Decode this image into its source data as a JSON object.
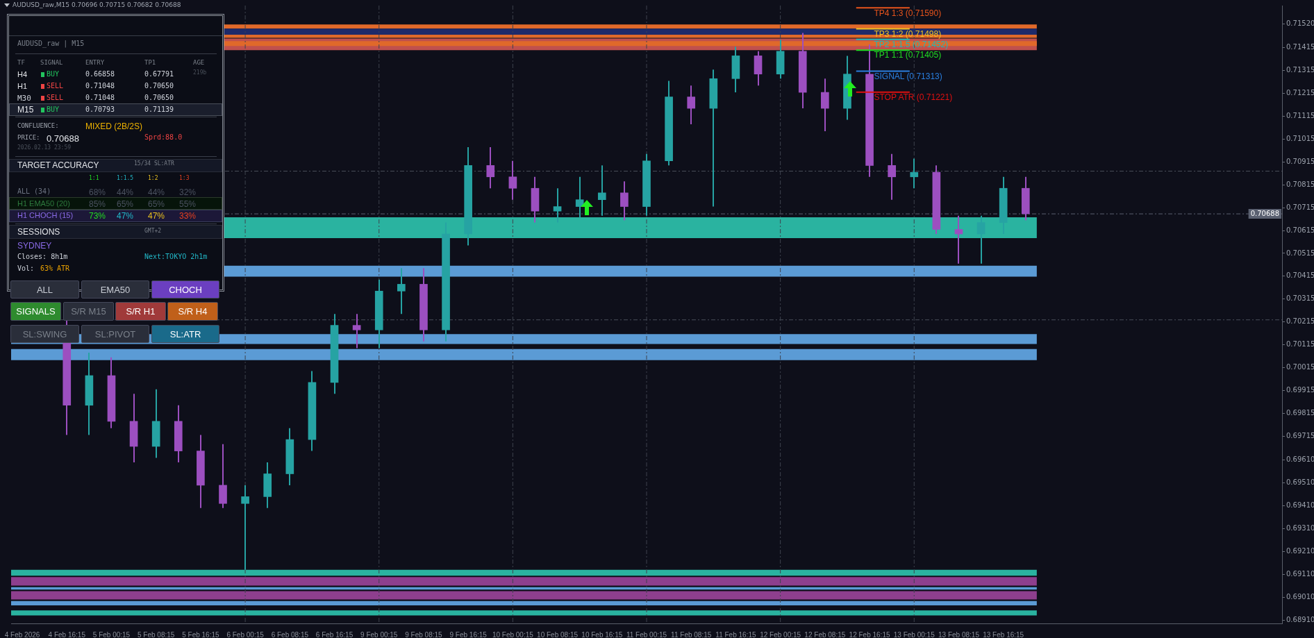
{
  "chart_data": {
    "type": "candlestick",
    "title": "AUDUSD_raw,M15  0.70696 0.70715 0.70682 0.70688",
    "categories": [
      "4 Feb 2026",
      null,
      "4 Feb 16:15",
      null,
      "5 Feb 00:15",
      null,
      "5 Feb 08:15",
      null,
      "5 Feb 16:15",
      null,
      "6 Feb 00:15",
      null,
      "6 Feb 08:15",
      null,
      "6 Feb 16:15",
      null,
      "9 Feb 00:15",
      null,
      "9 Feb 08:15",
      null,
      "9 Feb 16:15",
      null,
      "10 Feb 00:15",
      null,
      "10 Feb 08:15",
      null,
      "10 Feb 16:15",
      null,
      "11 Feb 00:15",
      null,
      "11 Feb 08:15",
      null,
      "11 Feb 16:15",
      null,
      "12 Feb 00:15",
      null,
      "12 Feb 08:15",
      null,
      "12 Feb 16:15",
      null,
      "13 Feb 00:15",
      null,
      "13 Feb 08:15",
      null,
      "13 Feb 16:15",
      null,
      null,
      null,
      null,
      null,
      null,
      null,
      null,
      null,
      null,
      null,
      null
    ],
    "ohlc": [
      null,
      null,
      [
        0.702,
        0.7022,
        0.6972,
        0.6985
      ],
      [
        0.6985,
        0.7008,
        0.6972,
        0.6998
      ],
      [
        0.6998,
        0.7006,
        0.6975,
        0.6978
      ],
      [
        0.6978,
        0.699,
        0.696,
        0.6967
      ],
      [
        0.6967,
        0.6992,
        0.6962,
        0.6978
      ],
      [
        0.6978,
        0.6985,
        0.696,
        0.6965
      ],
      [
        0.6965,
        0.6972,
        0.694,
        0.695
      ],
      [
        0.695,
        0.6968,
        0.694,
        0.6942
      ],
      [
        0.6942,
        0.695,
        0.6913,
        0.6945
      ],
      [
        0.6945,
        0.696,
        0.694,
        0.6955
      ],
      [
        0.6955,
        0.6975,
        0.695,
        0.697
      ],
      [
        0.697,
        0.7,
        0.6965,
        0.6995
      ],
      [
        0.6995,
        0.7025,
        0.699,
        0.702
      ],
      [
        0.702,
        0.7025,
        0.701,
        0.7018
      ],
      [
        0.7018,
        0.704,
        0.701,
        0.7035
      ],
      [
        0.7035,
        0.7045,
        0.7025,
        0.7038
      ],
      [
        0.7038,
        0.7045,
        0.7013,
        0.7018
      ],
      [
        0.7018,
        0.7065,
        0.7013,
        0.706
      ],
      [
        0.706,
        0.7098,
        0.7055,
        0.709
      ],
      [
        0.709,
        0.7098,
        0.708,
        0.7085
      ],
      [
        0.7085,
        0.7092,
        0.7075,
        0.708
      ],
      [
        0.708,
        0.7085,
        0.7065,
        0.707
      ],
      [
        0.707,
        0.708,
        0.7065,
        0.7072
      ],
      [
        0.7072,
        0.7085,
        0.7067,
        0.7075
      ],
      [
        0.7075,
        0.709,
        0.7068,
        0.7078
      ],
      [
        0.7078,
        0.7083,
        0.7066,
        0.7072
      ],
      [
        0.7072,
        0.7095,
        0.7068,
        0.7092
      ],
      [
        0.7092,
        0.7127,
        0.709,
        0.712
      ],
      [
        0.712,
        0.7125,
        0.7108,
        0.7115
      ],
      [
        0.7115,
        0.7132,
        0.7072,
        0.7128
      ],
      [
        0.7128,
        0.7142,
        0.7122,
        0.7138
      ],
      [
        0.7138,
        0.714,
        0.7125,
        0.713
      ],
      [
        0.713,
        0.7145,
        0.7128,
        0.714
      ],
      [
        0.714,
        0.7148,
        0.7115,
        0.7122
      ],
      [
        0.7122,
        0.7128,
        0.7105,
        0.7115
      ],
      [
        0.7115,
        0.7138,
        0.711,
        0.713
      ],
      [
        0.713,
        0.7143,
        0.7085,
        0.709
      ],
      [
        0.709,
        0.7095,
        0.7075,
        0.7085
      ],
      [
        0.7085,
        0.7093,
        0.708,
        0.7087
      ],
      [
        0.7087,
        0.709,
        0.706,
        0.7062
      ],
      [
        0.7062,
        0.7068,
        0.7047,
        0.706
      ],
      [
        0.706,
        0.7068,
        0.7047,
        0.7065
      ],
      [
        0.7065,
        0.7085,
        0.706,
        0.708
      ],
      [
        0.708,
        0.7085,
        0.7066,
        0.70688
      ],
      null,
      null,
      null,
      null,
      null,
      null,
      null,
      null,
      null,
      null,
      null
    ],
    "colors": [
      null,
      null,
      "#9c4fc0",
      "#26a3a3",
      "#9c4fc0",
      "#9c4fc0",
      "#26a3a3",
      "#9c4fc0",
      "#9c4fc0",
      "#9c4fc0",
      "#26a3a3",
      "#26a3a3",
      "#26a3a3",
      "#26a3a3",
      "#26a3a3",
      "#9c4fc0",
      "#26a3a3",
      "#26a3a3",
      "#9c4fc0",
      "#26a3a3",
      "#26a3a3",
      "#9c4fc0",
      "#9c4fc0",
      "#9c4fc0",
      "#26a3a3",
      "#26a3a3",
      "#26a3a3",
      "#9c4fc0",
      "#26a3a3",
      "#26a3a3",
      "#9c4fc0",
      "#26a3a3",
      "#26a3a3",
      "#9c4fc0",
      "#26a3a3",
      "#9c4fc0",
      "#9c4fc0",
      "#26a3a3",
      "#9c4fc0",
      "#9c4fc0",
      "#26a3a3",
      "#9c4fc0",
      "#9c4fc0",
      "#26a3a3",
      "#26a3a3",
      "#9c4fc0",
      null,
      null,
      null,
      null,
      null,
      null,
      null,
      null,
      null,
      null,
      null
    ],
    "ylim": [
      0.68895,
      0.716
    ],
    "yticks": [
      {
        "value": 0.7152,
        "label": "0.71520"
      },
      {
        "value": 0.71415,
        "label": "0.71415"
      },
      {
        "value": 0.71315,
        "label": "0.71315"
      },
      {
        "value": 0.71215,
        "label": "0.71215"
      },
      {
        "value": 0.71115,
        "label": "0.71115"
      },
      {
        "value": 0.71015,
        "label": "0.71015"
      },
      {
        "value": 0.70915,
        "label": "0.70915"
      },
      {
        "value": 0.70815,
        "label": "0.70815"
      },
      {
        "value": 0.70715,
        "label": "0.70715"
      },
      {
        "value": 0.70615,
        "label": "0.70615"
      },
      {
        "value": 0.70515,
        "label": "0.70515"
      },
      {
        "value": 0.70415,
        "label": "0.70415"
      },
      {
        "value": 0.70315,
        "label": "0.70315"
      },
      {
        "value": 0.70215,
        "label": "0.70215"
      },
      {
        "value": 0.70115,
        "label": "0.70115"
      },
      {
        "value": 0.70015,
        "label": "0.70015"
      },
      {
        "value": 0.69915,
        "label": "0.69915"
      },
      {
        "value": 0.69815,
        "label": "0.69815"
      },
      {
        "value": 0.69715,
        "label": "0.69715"
      },
      {
        "value": 0.6961,
        "label": "0.69610"
      },
      {
        "value": 0.6951,
        "label": "0.69510"
      },
      {
        "value": 0.6941,
        "label": "0.69410"
      },
      {
        "value": 0.6931,
        "label": "0.69310"
      },
      {
        "value": 0.6921,
        "label": "0.69210"
      },
      {
        "value": 0.6911,
        "label": "0.69110"
      },
      {
        "value": 0.6901,
        "label": "0.69010"
      },
      {
        "value": 0.6891,
        "label": "0.68910"
      }
    ],
    "bands": [
      {
        "axis": "y",
        "from": 0.71405,
        "to": 0.71456,
        "color": "#c0504d"
      },
      {
        "axis": "y",
        "from": 0.71499,
        "to": 0.71517,
        "color": "#e0692a"
      },
      {
        "axis": "y",
        "from": 0.71472,
        "to": 0.71499,
        "color": "#1e2a6a"
      },
      {
        "axis": "y",
        "from": 0.71459,
        "to": 0.71472,
        "color": "#e0692a"
      },
      {
        "axis": "y",
        "from": 0.71423,
        "to": 0.71444,
        "color": "#e0692a"
      },
      {
        "axis": "y",
        "from": 0.70582,
        "to": 0.70673,
        "color": "#2ab3a0"
      },
      {
        "axis": "y",
        "from": 0.70413,
        "to": 0.70461,
        "color": "#5b9bd5"
      },
      {
        "axis": "y",
        "from": 0.70118,
        "to": 0.70162,
        "color": "#5b9bd5"
      },
      {
        "axis": "y",
        "from": 0.70048,
        "to": 0.70096,
        "color": "#5b9bd5"
      },
      {
        "axis": "y",
        "from": 0.69104,
        "to": 0.6913,
        "color": "#2ab3a0"
      },
      {
        "axis": "y",
        "from": 0.69061,
        "to": 0.69098,
        "color": "#8e3f8e"
      },
      {
        "axis": "y",
        "from": 0.69043,
        "to": 0.69054,
        "color": "#5b9bd5"
      },
      {
        "axis": "y",
        "from": 0.69,
        "to": 0.69036,
        "color": "#8e3f8e"
      },
      {
        "axis": "y",
        "from": 0.68974,
        "to": 0.68993,
        "color": "#5b9bd5"
      },
      {
        "axis": "y",
        "from": 0.6893,
        "to": 0.68952,
        "color": "#2ab3a0"
      }
    ],
    "ref_lines": [
      {
        "axis": "y",
        "value": 0.7159,
        "label": "TP4 1:3 (0.71590)",
        "color": "#e8541c",
        "line_style": "solid"
      },
      {
        "axis": "y",
        "value": 0.71498,
        "label": "TP3 1:2 (0.71498)",
        "color": "#f0c020",
        "line_style": "solid"
      },
      {
        "axis": "y",
        "value": 0.71452,
        "label": "TP2 1:1.5 (0.71452)",
        "color": "#20b8b8",
        "line_style": "solid"
      },
      {
        "axis": "y",
        "value": 0.71405,
        "label": "TP1 1:1 (0.71405)",
        "color": "#22dd22",
        "line_style": "solid"
      },
      {
        "axis": "y",
        "value": 0.71313,
        "label": "SIGNAL (0.71313)",
        "color": "#2a7fe0",
        "line_style": "solid"
      },
      {
        "axis": "y",
        "value": 0.71221,
        "label": "STOP ATR (0.71221)",
        "color": "#e01010",
        "line_style": "solid"
      },
      {
        "axis": "y",
        "value": 0.70688,
        "label": "0.70688",
        "color": "#5a6070",
        "line_style": "dashed"
      },
      {
        "axis": "y",
        "value": 0.70875,
        "color": "#4a4f5a",
        "line_style": "dashed"
      },
      {
        "axis": "y",
        "value": 0.70224,
        "color": "#4a4f5a",
        "line_style": "dashed"
      },
      {
        "axis": "x",
        "value": "6 Feb 00:15",
        "color": "#3e434e",
        "line_style": "dashed"
      },
      {
        "axis": "x",
        "value": "9 Feb 00:15",
        "color": "#3e434e",
        "line_style": "dashed"
      },
      {
        "axis": "x",
        "value": "10 Feb 00:15",
        "color": "#3e434e",
        "line_style": "dashed"
      },
      {
        "axis": "x",
        "value": "11 Feb 00:15",
        "color": "#3e434e",
        "line_style": "dashed"
      },
      {
        "axis": "x",
        "value": "12 Feb 00:15",
        "color": "#3e434e",
        "line_style": "dashed"
      },
      {
        "axis": "x",
        "value": "13 Feb 00:15",
        "color": "#3e434e",
        "line_style": "dashed"
      }
    ],
    "annotations": [
      "AUDUSD_raw | M15",
      "TF",
      "SIGNAL",
      "ENTRY",
      "TP1",
      "AGE",
      "H4",
      "BUY",
      "0.66858",
      "0.67791",
      "219b",
      "H1",
      "SELL",
      "0.71048",
      "0.70650",
      "M30",
      "SELL",
      "0.71048",
      "0.70650",
      "M15",
      "BUY",
      "0.70793",
      "0.71139",
      "CONFLUENCE:",
      "MIXED (2B/2S)",
      "PRICE:",
      "0.70688",
      "Sprd:88.0",
      "2026.02.13 23:59",
      "TARGET ACCURACY",
      "15/34 SL:ATR",
      "1:1",
      "1:1.5",
      "1:2",
      "1:3",
      "ALL (34)",
      "68%",
      "44%",
      "44%",
      "32%",
      "H1 EMA50 (20)",
      "85%",
      "65%",
      "65%",
      "55%",
      "H1 CHOCH (15)",
      "73%",
      "47%",
      "47%",
      "33%",
      "SESSIONS",
      "GMT+2",
      "SYDNEY",
      "Closes: 8h1m",
      "Next:TOKYO 2h1m",
      "Vol:",
      "63% ATR",
      "ALL",
      "EMA50",
      "CHOCH",
      "SIGNALS",
      "S/R M15",
      "S/R H1",
      "S/R H4",
      "SL:SWING",
      "SL:PIVOT",
      "SL:ATR"
    ]
  }
}
